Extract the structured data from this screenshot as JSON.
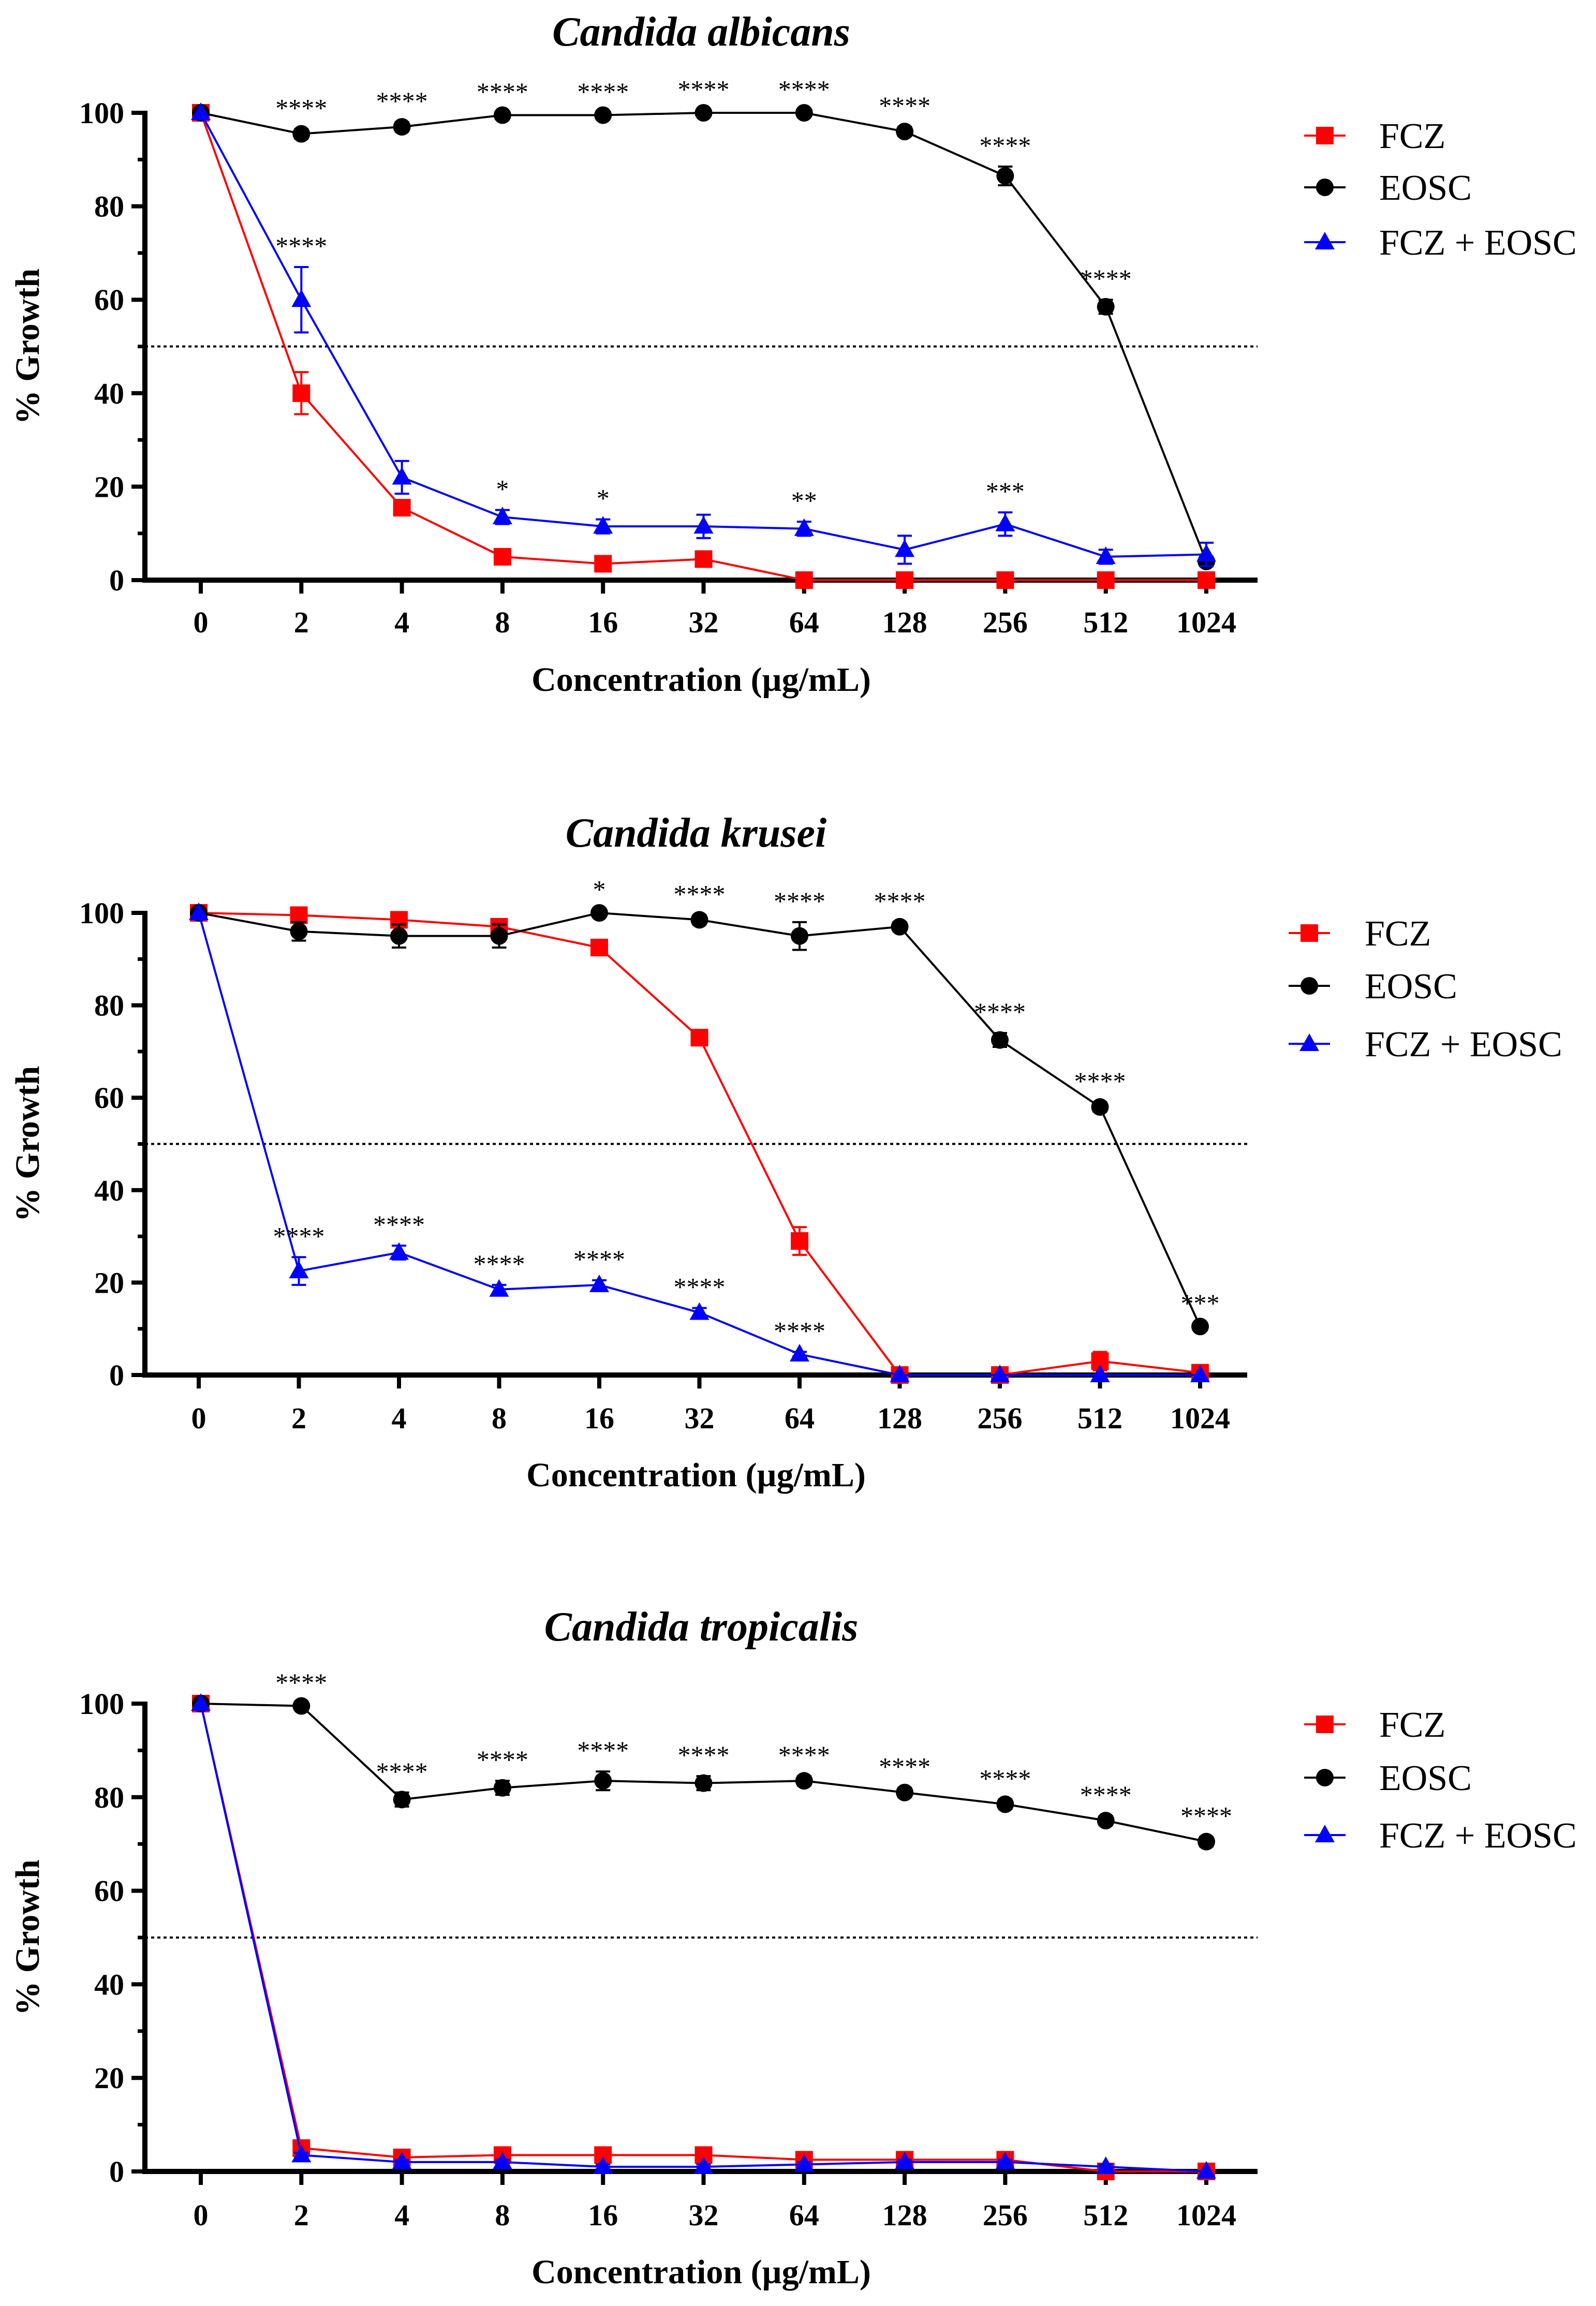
{
  "figure": {
    "layout": "three stacked panels"
  },
  "colors": {
    "FCZ": "#ff0000",
    "EOSC": "#000000",
    "FCZ + EOSC": "#0000ff",
    "threshold": "#000000"
  },
  "chart_data": [
    {
      "type": "line",
      "title": "Candida albicans",
      "xlabel": "Concentration (µg/mL)",
      "ylabel": "% Growth",
      "categories": [
        "0",
        "2",
        "4",
        "8",
        "16",
        "32",
        "64",
        "128",
        "256",
        "512",
        "1024"
      ],
      "ylim": [
        0,
        100
      ],
      "yticks": [
        0,
        20,
        40,
        60,
        80,
        100
      ],
      "threshold": 50,
      "legend": "top-right",
      "series": [
        {
          "name": "FCZ",
          "marker": "square",
          "color": "#ff0000",
          "values": [
            100,
            40,
            15.5,
            5,
            3.5,
            4.5,
            0,
            0,
            0,
            0,
            0
          ],
          "errors": [
            0,
            4.5,
            1,
            0.5,
            0.5,
            0.5,
            0,
            0,
            0,
            0,
            0
          ]
        },
        {
          "name": "EOSC",
          "marker": "circle",
          "color": "#000000",
          "values": [
            100,
            95.5,
            97,
            99.5,
            99.5,
            100,
            100,
            96,
            86.5,
            58.5,
            4
          ],
          "errors": [
            0,
            1,
            1,
            0.5,
            0.5,
            0.5,
            0.5,
            1,
            2,
            1.5,
            1
          ]
        },
        {
          "name": "FCZ + EOSC",
          "marker": "triangle",
          "color": "#0000ff",
          "values": [
            100,
            60,
            22,
            13.5,
            11.5,
            11.5,
            11,
            6.5,
            12,
            5,
            5.5
          ],
          "errors": [
            0,
            7,
            3.5,
            1.5,
            1.5,
            2.5,
            1.5,
            3,
            2.5,
            1.5,
            2.5
          ]
        }
      ],
      "annotations": [
        {
          "series": "EOSC",
          "index": 1,
          "text": "****"
        },
        {
          "series": "EOSC",
          "index": 2,
          "text": "****"
        },
        {
          "series": "EOSC",
          "index": 3,
          "text": "****"
        },
        {
          "series": "EOSC",
          "index": 4,
          "text": "****"
        },
        {
          "series": "EOSC",
          "index": 5,
          "text": "****"
        },
        {
          "series": "EOSC",
          "index": 6,
          "text": "****"
        },
        {
          "series": "EOSC",
          "index": 7,
          "text": "****"
        },
        {
          "series": "EOSC",
          "index": 8,
          "text": "****"
        },
        {
          "series": "EOSC",
          "index": 9,
          "text": "****"
        },
        {
          "series": "FCZ + EOSC",
          "index": 1,
          "text": "****"
        },
        {
          "series": "FCZ + EOSC",
          "index": 3,
          "text": "*"
        },
        {
          "series": "FCZ + EOSC",
          "index": 4,
          "text": "*"
        },
        {
          "series": "FCZ + EOSC",
          "index": 6,
          "text": "**"
        },
        {
          "series": "FCZ + EOSC",
          "index": 8,
          "text": "***"
        }
      ]
    },
    {
      "type": "line",
      "title": "Candida krusei",
      "xlabel": "Concentration (µg/mL)",
      "ylabel": "% Growth",
      "categories": [
        "0",
        "2",
        "4",
        "8",
        "16",
        "32",
        "64",
        "128",
        "256",
        "512",
        "1024"
      ],
      "ylim": [
        0,
        100
      ],
      "yticks": [
        0,
        20,
        40,
        60,
        80,
        100
      ],
      "threshold": 50,
      "legend": "top-right",
      "series": [
        {
          "name": "FCZ",
          "marker": "square",
          "color": "#ff0000",
          "values": [
            100,
            99.5,
            98.5,
            97,
            92.5,
            73,
            29,
            0,
            0,
            3,
            0.5
          ],
          "errors": [
            0,
            0.5,
            0.5,
            0.5,
            0.5,
            0.5,
            3,
            0,
            0,
            2,
            0.5
          ]
        },
        {
          "name": "EOSC",
          "marker": "circle",
          "color": "#000000",
          "values": [
            100,
            96,
            95,
            95,
            100,
            98.5,
            95,
            97,
            72.5,
            58,
            10.5
          ],
          "errors": [
            0,
            2,
            2.5,
            2.5,
            0.5,
            1,
            3,
            1,
            1.5,
            1,
            0.5
          ]
        },
        {
          "name": "FCZ + EOSC",
          "marker": "triangle",
          "color": "#0000ff",
          "values": [
            100,
            22.5,
            26.5,
            18.5,
            19.5,
            13.5,
            4.5,
            0,
            0,
            0,
            0
          ],
          "errors": [
            0,
            3,
            1.5,
            1,
            1,
            1,
            0.5,
            0,
            0,
            0,
            0
          ]
        }
      ],
      "annotations": [
        {
          "series": "EOSC",
          "index": 4,
          "text": "*"
        },
        {
          "series": "EOSC",
          "index": 5,
          "text": "****"
        },
        {
          "series": "EOSC",
          "index": 6,
          "text": "****"
        },
        {
          "series": "EOSC",
          "index": 7,
          "text": "****"
        },
        {
          "series": "EOSC",
          "index": 8,
          "text": "****"
        },
        {
          "series": "EOSC",
          "index": 9,
          "text": "****"
        },
        {
          "series": "EOSC",
          "index": 10,
          "text": "***"
        },
        {
          "series": "FCZ + EOSC",
          "index": 1,
          "text": "****"
        },
        {
          "series": "FCZ + EOSC",
          "index": 2,
          "text": "****"
        },
        {
          "series": "FCZ + EOSC",
          "index": 3,
          "text": "****"
        },
        {
          "series": "FCZ + EOSC",
          "index": 4,
          "text": "****"
        },
        {
          "series": "FCZ + EOSC",
          "index": 5,
          "text": "****"
        },
        {
          "series": "FCZ + EOSC",
          "index": 6,
          "text": "****"
        }
      ]
    },
    {
      "type": "line",
      "title": "Candida tropicalis",
      "xlabel": "Concentration (µg/mL)",
      "ylabel": "% Growth",
      "categories": [
        "0",
        "2",
        "4",
        "8",
        "16",
        "32",
        "64",
        "128",
        "256",
        "512",
        "1024"
      ],
      "ylim": [
        0,
        100
      ],
      "yticks": [
        0,
        20,
        40,
        60,
        80,
        100
      ],
      "threshold": 50,
      "legend": "top-right",
      "series": [
        {
          "name": "FCZ",
          "marker": "square",
          "color": "#ff0000",
          "values": [
            100,
            5,
            3,
            3.5,
            3.5,
            3.5,
            2.5,
            2.5,
            2.5,
            0,
            0
          ],
          "errors": [
            0,
            0.5,
            0.5,
            0.5,
            0.5,
            0.5,
            0.5,
            0.5,
            0.5,
            0.5,
            0.5
          ]
        },
        {
          "name": "EOSC",
          "marker": "circle",
          "color": "#000000",
          "values": [
            100,
            99.5,
            79.5,
            82,
            83.5,
            83,
            83.5,
            81,
            78.5,
            75,
            70.5
          ],
          "errors": [
            0,
            0.5,
            1.5,
            1.5,
            2,
            1.5,
            1,
            1,
            1,
            1,
            1
          ]
        },
        {
          "name": "FCZ + EOSC",
          "marker": "triangle",
          "color": "#0000ff",
          "values": [
            100,
            3.5,
            2,
            2,
            1,
            1,
            1.5,
            2,
            2,
            1,
            0
          ],
          "errors": [
            0,
            0.5,
            0.5,
            0.5,
            0.5,
            0.5,
            0.5,
            0.5,
            0.5,
            0.5,
            0
          ]
        }
      ],
      "annotations": [
        {
          "series": "EOSC",
          "index": 1,
          "text": "****"
        },
        {
          "series": "EOSC",
          "index": 2,
          "text": "****"
        },
        {
          "series": "EOSC",
          "index": 3,
          "text": "****"
        },
        {
          "series": "EOSC",
          "index": 4,
          "text": "****"
        },
        {
          "series": "EOSC",
          "index": 5,
          "text": "****"
        },
        {
          "series": "EOSC",
          "index": 6,
          "text": "****"
        },
        {
          "series": "EOSC",
          "index": 7,
          "text": "****"
        },
        {
          "series": "EOSC",
          "index": 8,
          "text": "****"
        },
        {
          "series": "EOSC",
          "index": 9,
          "text": "****"
        },
        {
          "series": "EOSC",
          "index": 10,
          "text": "****"
        }
      ]
    }
  ]
}
